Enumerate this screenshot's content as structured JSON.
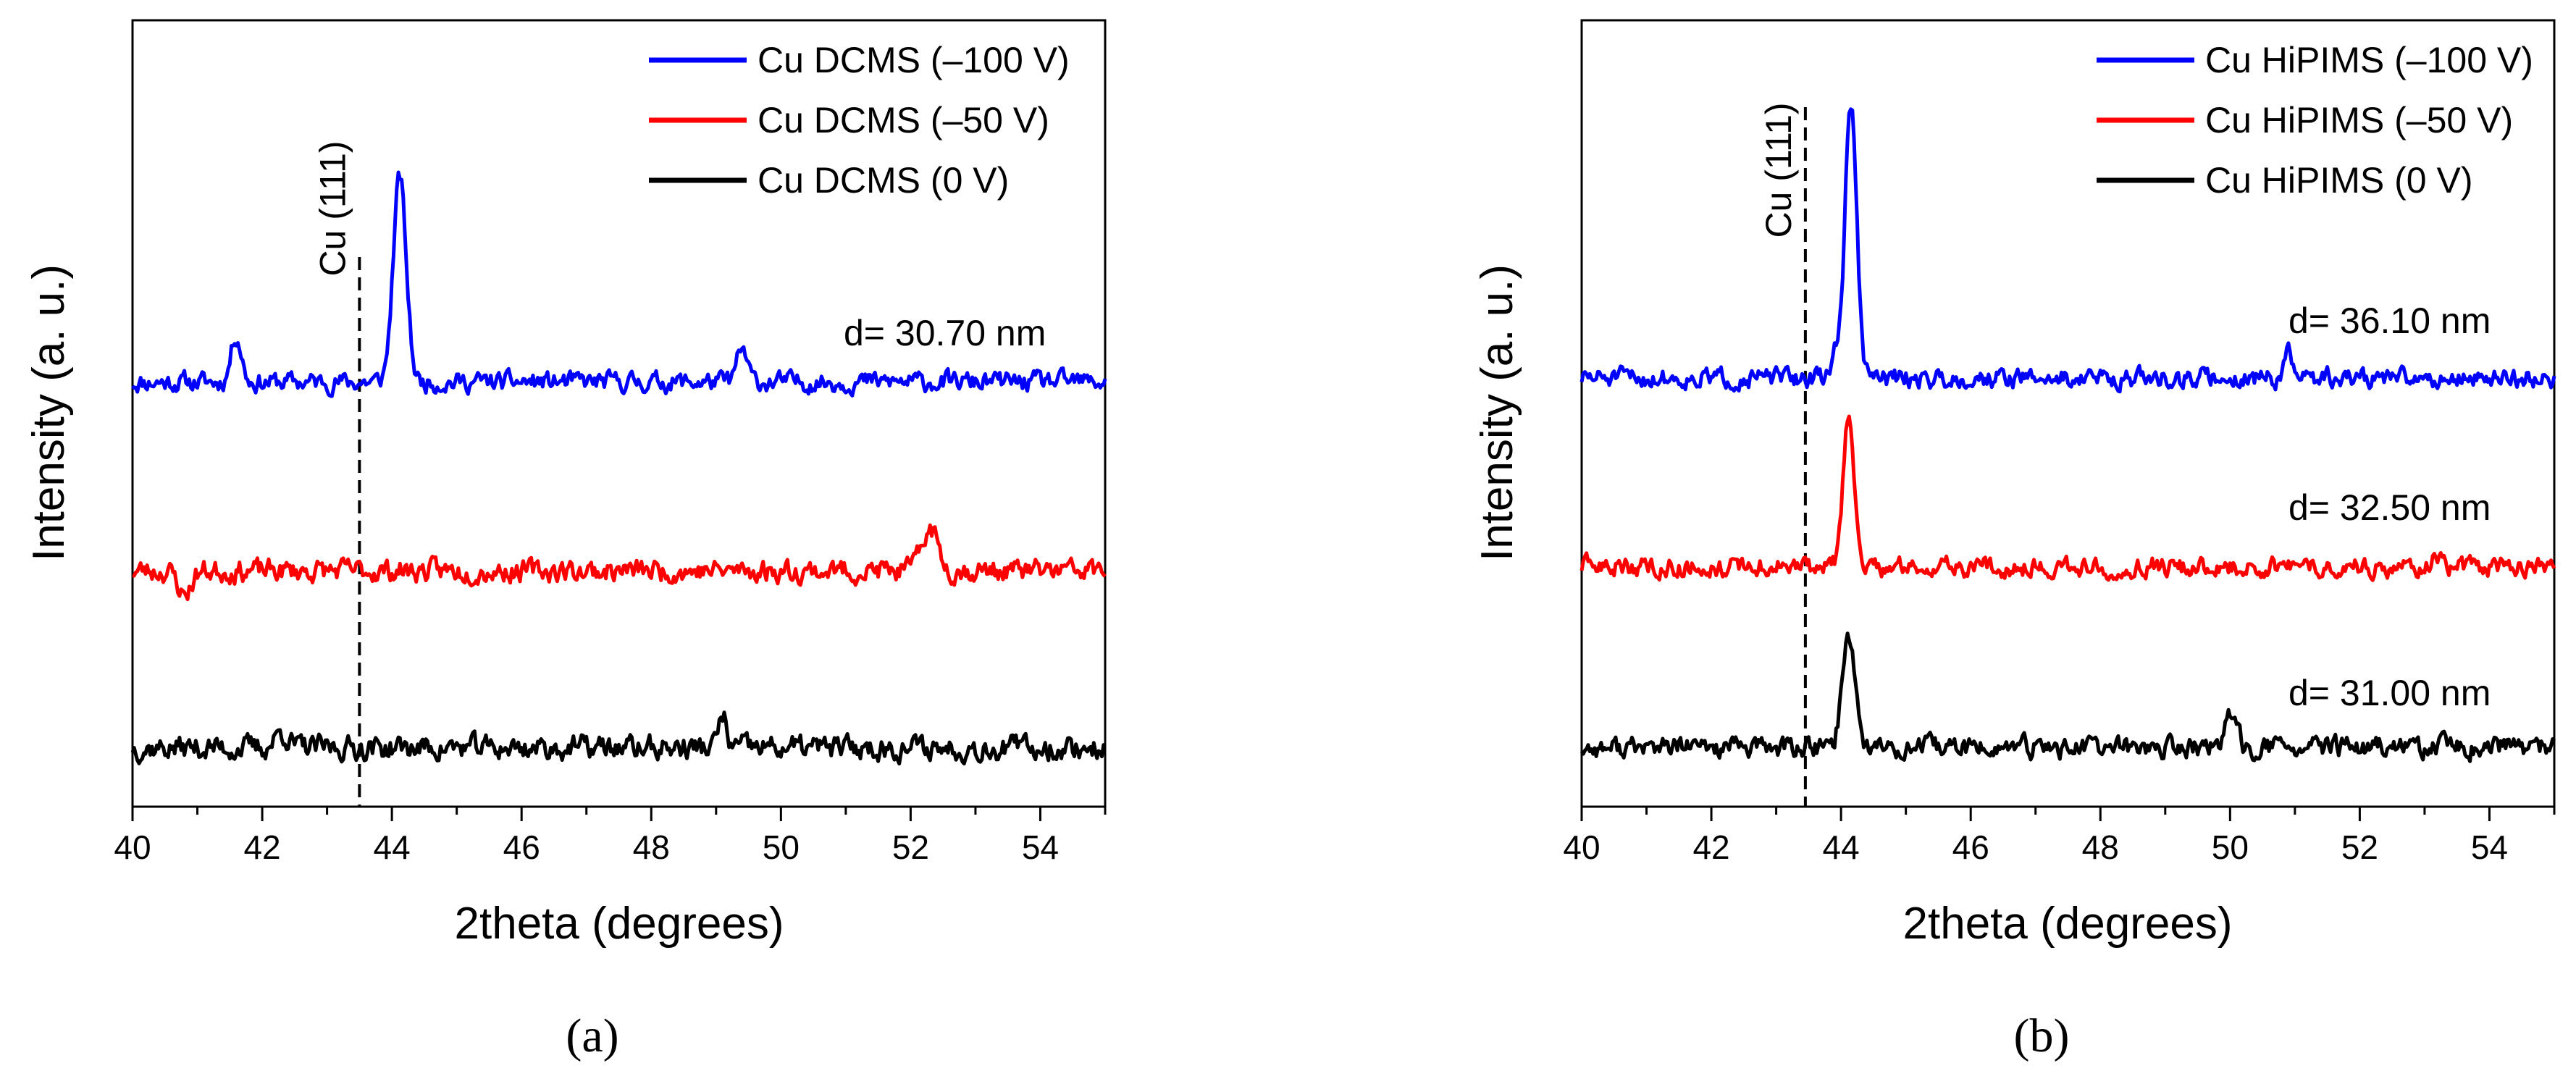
{
  "chart_data": [
    {
      "type": "line",
      "panel_label": "(a)",
      "xlabel": "2theta (degrees)",
      "ylabel": "Intensity (a. u.)",
      "xlim": [
        40,
        55
      ],
      "xticks": [
        40,
        42,
        44,
        46,
        48,
        50,
        52,
        54
      ],
      "ylim": [
        0,
        10
      ],
      "reference_line": {
        "label": "Cu (111)",
        "x": 43.5
      },
      "legend_position": "top-right",
      "annotations": [
        {
          "text": "d= 30.70 nm",
          "series": "Cu DCMS (–100 V)"
        }
      ],
      "series": [
        {
          "name": "Cu DCMS (–100 V)",
          "color": "#0000ff",
          "baseline": 5.4,
          "noise": 0.14,
          "seed": 11,
          "peaks": [
            {
              "x": 41.6,
              "h": 0.6,
              "w": 0.08
            },
            {
              "x": 44.12,
              "h": 2.6,
              "w": 0.1
            },
            {
              "x": 49.4,
              "h": 0.4,
              "w": 0.08
            }
          ]
        },
        {
          "name": "Cu DCMS (–50 V)",
          "color": "#ff0000",
          "baseline": 3.0,
          "noise": 0.16,
          "seed": 23,
          "peaks": [
            {
              "x": 52.3,
              "h": 0.55,
              "w": 0.12
            },
            {
              "x": 40.8,
              "h": -0.3,
              "w": 0.1
            }
          ]
        },
        {
          "name": "Cu DCMS (0 V)",
          "color": "#000000",
          "baseline": 0.75,
          "noise": 0.17,
          "seed": 37,
          "peaks": [
            {
              "x": 49.1,
              "h": 0.4,
              "w": 0.06
            },
            {
              "x": 42.3,
              "h": 0.2,
              "w": 0.1
            }
          ]
        }
      ]
    },
    {
      "type": "line",
      "panel_label": "(b)",
      "xlabel": "2theta (degrees)",
      "ylabel": "Intensity (a. u.)",
      "xlim": [
        40,
        55
      ],
      "xticks": [
        40,
        42,
        44,
        46,
        48,
        50,
        52,
        54
      ],
      "ylim": [
        0,
        10
      ],
      "reference_line": {
        "label": "Cu (111)",
        "x": 43.45
      },
      "legend_position": "top-right",
      "annotations": [
        {
          "text": "d= 36.10 nm",
          "series": "Cu HiPIMS (–100 V)"
        },
        {
          "text": "d= 32.50 nm",
          "series": "Cu HiPIMS (–50 V)"
        },
        {
          "text": "d= 31.00 nm",
          "series": "Cu HiPIMS (0 V)"
        }
      ],
      "series": [
        {
          "name": "Cu HiPIMS (–100 V)",
          "color": "#0000ff",
          "baseline": 5.45,
          "noise": 0.14,
          "seed": 51,
          "peaks": [
            {
              "x": 44.15,
              "h": 3.5,
              "w": 0.09
            },
            {
              "x": 43.9,
              "h": 0.35,
              "w": 0.05
            },
            {
              "x": 50.9,
              "h": 0.3,
              "w": 0.06
            }
          ]
        },
        {
          "name": "Cu HiPIMS (–50 V)",
          "color": "#ff0000",
          "baseline": 3.05,
          "noise": 0.14,
          "seed": 63,
          "peaks": [
            {
              "x": 44.12,
              "h": 2.0,
              "w": 0.08
            },
            {
              "x": 53.2,
              "h": 0.2,
              "w": 0.1
            }
          ]
        },
        {
          "name": "Cu HiPIMS (0 V)",
          "color": "#000000",
          "baseline": 0.75,
          "noise": 0.15,
          "seed": 77,
          "peaks": [
            {
              "x": 44.12,
              "h": 1.45,
              "w": 0.1
            },
            {
              "x": 50.0,
              "h": 0.35,
              "w": 0.1
            }
          ]
        }
      ]
    }
  ]
}
